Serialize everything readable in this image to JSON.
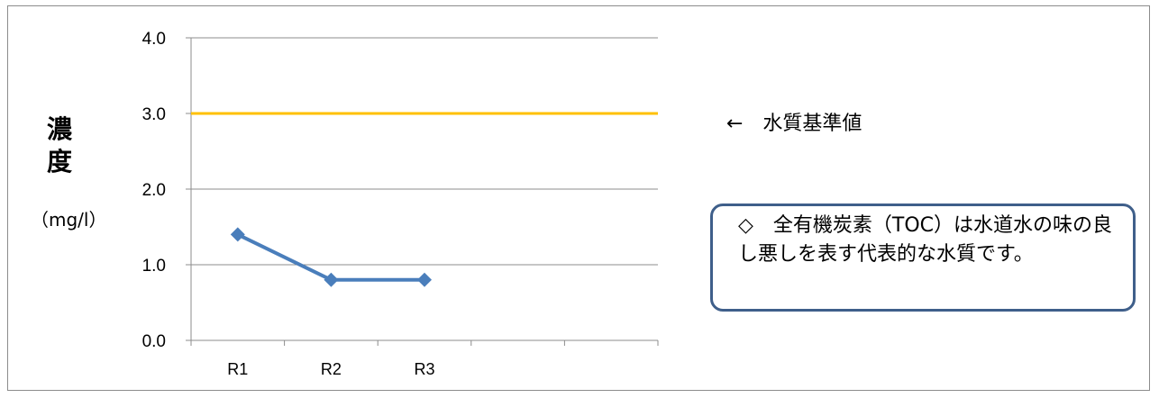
{
  "chart_data": {
    "type": "line",
    "title": "",
    "xlabel": "",
    "ylabel": "濃度",
    "ylabel_chars": [
      "濃",
      "度"
    ],
    "yunit": "（mg/l）",
    "categories": [
      "R1",
      "R2",
      "R3",
      "",
      ""
    ],
    "ylim": [
      0,
      4
    ],
    "yticks": [
      "0.0",
      "1.0",
      "2.0",
      "3.0",
      "4.0"
    ],
    "ytick_values": [
      0,
      1,
      2,
      3,
      4
    ],
    "grid": true,
    "series": [
      {
        "name": "",
        "values": [
          1.4,
          0.8,
          0.8,
          null,
          null
        ],
        "color": "#4a7ebb",
        "marker": "diamond"
      }
    ],
    "reference_line": {
      "value": 3.0,
      "color": "#ffc000",
      "label": "←　水質基準値"
    },
    "annotation": "◇　全有機炭素（TOC）は水道水の味の良し悪しを表す代表的な水質です。"
  }
}
